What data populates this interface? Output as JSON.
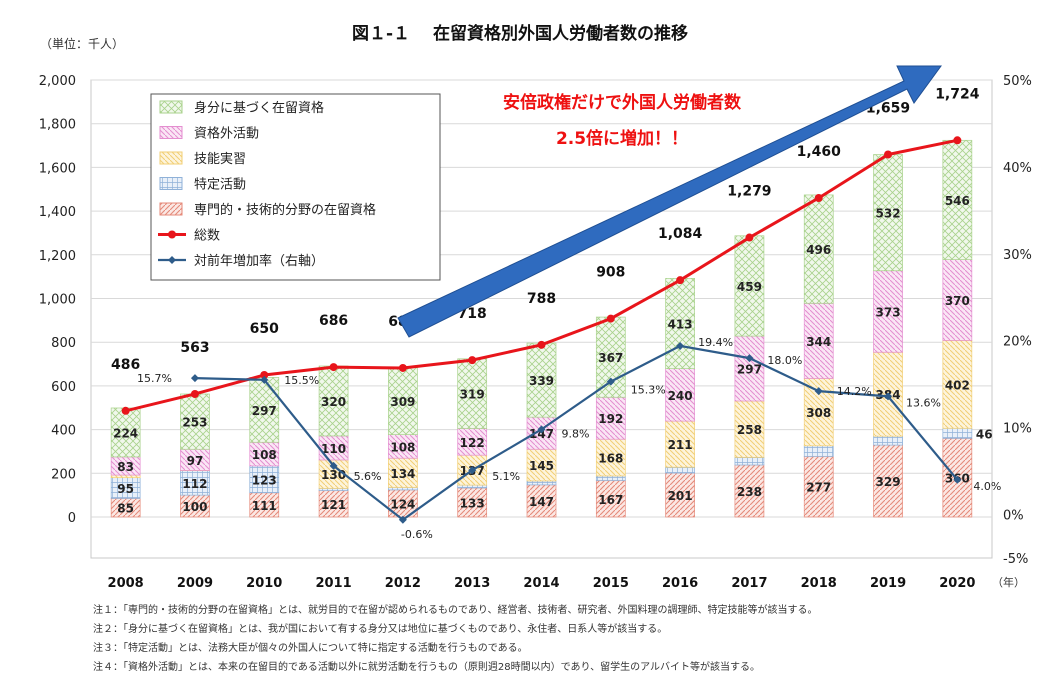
{
  "chart_data": {
    "type": "bar",
    "title": "図１-１　 在留資格別外国人労働者数の推移",
    "unit_label": "（単位：千人）",
    "x_unit_label": "（年）",
    "categories": [
      "2008",
      "2009",
      "2010",
      "2011",
      "2012",
      "2013",
      "2014",
      "2015",
      "2016",
      "2017",
      "2018",
      "2019",
      "2020"
    ],
    "ylim": [
      0,
      2000
    ],
    "y_ticks": [
      "0",
      "200",
      "400",
      "600",
      "800",
      "1,000",
      "1,200",
      "1,400",
      "1,600",
      "1,800",
      "2,000"
    ],
    "y2lim": [
      -5,
      50
    ],
    "y2_ticks": [
      "-5%",
      "0%",
      "10%",
      "20%",
      "30%",
      "40%",
      "50%"
    ],
    "stack_series": [
      {
        "name": "専門的・技術的分野の在留資格",
        "color": "#e58a7a",
        "values": [
          85,
          100,
          111,
          121,
          124,
          133,
          147,
          167,
          201,
          238,
          277,
          329,
          360
        ],
        "labels": [
          "85",
          "100",
          "111",
          "121",
          "124",
          "133",
          "147",
          "167",
          "201",
          "238",
          "277",
          "329",
          "360"
        ]
      },
      {
        "name": "特定活動",
        "color": "#8fb1d8",
        "values": [
          95,
          112,
          123,
          10,
          11,
          13,
          18,
          21,
          27,
          35,
          49,
          41,
          46
        ],
        "labels": [
          "95",
          "112",
          "123",
          "",
          "",
          "",
          "",
          "",
          "",
          "",
          "",
          "",
          "46"
        ]
      },
      {
        "name": "技能実習",
        "color": "#f2cf75",
        "values": [
          12,
          1,
          0,
          130,
          134,
          137,
          145,
          168,
          211,
          258,
          308,
          384,
          402
        ],
        "labels": [
          "",
          "",
          "",
          "130",
          "134",
          "137",
          "145",
          "168",
          "211",
          "258",
          "308",
          "384",
          "402"
        ]
      },
      {
        "name": "資格外活動",
        "color": "#e48ed0",
        "values": [
          83,
          97,
          108,
          110,
          108,
          122,
          147,
          192,
          240,
          297,
          344,
          373,
          370
        ],
        "labels": [
          "83",
          "97",
          "108",
          "110",
          "108",
          "122",
          "147",
          "192",
          "240",
          "297",
          "344",
          "373",
          "370"
        ]
      },
      {
        "name": "身分に基づく在留資格",
        "color": "#a9d28c",
        "values": [
          224,
          253,
          297,
          320,
          309,
          319,
          339,
          367,
          413,
          459,
          496,
          532,
          546
        ],
        "labels": [
          "224",
          "253",
          "297",
          "320",
          "309",
          "319",
          "339",
          "367",
          "413",
          "459",
          "496",
          "532",
          "546"
        ]
      }
    ],
    "total_series": {
      "name": "総数",
      "color": "#e8151b",
      "values": [
        486,
        563,
        650,
        686,
        682,
        718,
        788,
        908,
        1084,
        1279,
        1460,
        1659,
        1724
      ],
      "labels": [
        "486",
        "563",
        "650",
        "686",
        "682",
        "718",
        "788",
        "908",
        "1,084",
        "1,279",
        "1,460",
        "1,659",
        "1,724"
      ]
    },
    "growth_series": {
      "name": "対前年増加率（右軸）",
      "color": "#2e5c8a",
      "values": [
        null,
        15.7,
        15.5,
        5.6,
        -0.6,
        5.1,
        9.8,
        15.3,
        19.4,
        18.0,
        14.2,
        13.6,
        4.0
      ],
      "labels": [
        "",
        "15.7%",
        "15.5%",
        "5.6%",
        "-0.6%",
        "5.1%",
        "9.8%",
        "15.3%",
        "19.4%",
        "18.0%",
        "14.2%",
        "13.6%",
        "4.0%"
      ]
    },
    "legend_order": [
      "身分に基づく在留資格",
      "資格外活動",
      "技能実習",
      "特定活動",
      "専門的・技術的分野の在留資格",
      "総数",
      "対前年増加率（右軸）"
    ],
    "legend_position": "top-left",
    "annotation": {
      "line1": "安倍政権だけで外国人労働者数",
      "line2": "2.5倍に増加！！",
      "color": "#ee1111",
      "arrow_color": "#2f6bbf"
    }
  },
  "notes": [
    "注１：「専門的・技術的分野の在留資格」とは、就労目的で在留が認められるものであり、経営者、技術者、研究者、外国料理の調理師、特定技能等が該当する。",
    "注２：「身分に基づく在留資格」とは、我が国において有する身分又は地位に基づくものであり、永住者、日系人等が該当する。",
    "注３：「特定活動」とは、法務大臣が個々の外国人について特に指定する活動を行うものである。",
    "注４：「資格外活動」とは、本来の在留目的である活動以外に就労活動を行うもの（原則週28時間以内）であり、留学生のアルバイト等が該当する。"
  ]
}
